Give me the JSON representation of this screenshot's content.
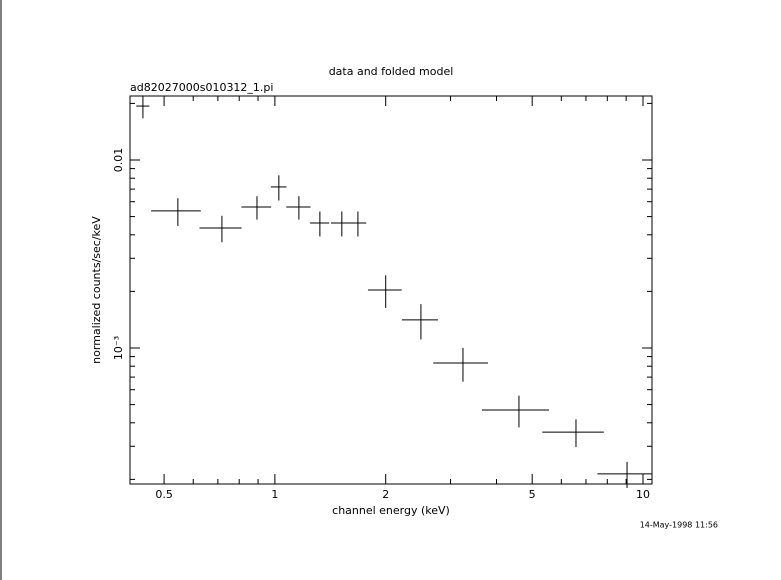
{
  "chart_data": {
    "type": "errorbar",
    "title": "data and folded model",
    "subtitle": "ad82027000s010312_1.pi",
    "x_label": "channel energy (keV)",
    "y_label": "normalized counts/sec/keV",
    "timestamp": "14-May-1998 11:56",
    "color": "#000000",
    "x": [
      0.438,
      0.545,
      0.718,
      0.894,
      1.025,
      1.162,
      1.325,
      1.52,
      1.681,
      2.0,
      2.493,
      3.243,
      4.603,
      6.576,
      9.05
    ],
    "xerr": [
      0.018,
      0.084,
      0.094,
      0.083,
      0.05,
      0.088,
      0.08,
      0.1,
      0.09,
      0.21,
      0.28,
      0.55,
      0.95,
      1.25,
      1.53
    ],
    "values": [
      0.01936,
      0.00536,
      0.00435,
      0.00562,
      0.00719,
      0.00562,
      0.00462,
      0.00462,
      0.00462,
      0.002034,
      0.00141,
      0.000832,
      0.000468,
      0.000357,
      0.000214
    ],
    "yerr": [
      0.0027,
      0.0009,
      0.0007,
      0.0008,
      0.0011,
      0.0008,
      0.0007,
      0.0007,
      0.0007,
      0.0004,
      0.0003,
      0.00017,
      9e-05,
      6e-05,
      3.4e-05
    ],
    "xscale": "log",
    "yscale": "log",
    "xlim": [
      0.404,
      10.58
    ],
    "ylim": [
      0.000189,
      0.0219
    ],
    "xticks": [
      0.5,
      1,
      2,
      5,
      10
    ],
    "xminorticks": [
      0.6,
      0.7,
      0.8,
      0.9,
      3,
      4,
      6,
      7,
      8,
      9
    ],
    "yticks": [
      0.01,
      {
        "value": 0.001,
        "label": "10⁻³"
      }
    ],
    "yminorticks": [
      0.0002,
      0.0003,
      0.0004,
      0.0005,
      0.0006,
      0.0007,
      0.0008,
      0.0009,
      0.002,
      0.003,
      0.004,
      0.005,
      0.006,
      0.007,
      0.008,
      0.009,
      0.02
    ]
  }
}
